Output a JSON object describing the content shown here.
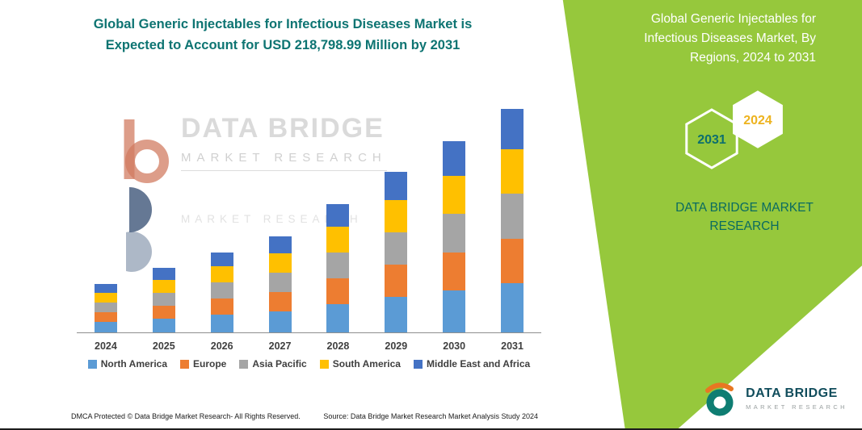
{
  "colors": {
    "green": "#96c83c",
    "teal": "#0d7472",
    "gold": "#edb31f",
    "axis": "#8f8f8f"
  },
  "left_panel": {
    "title": "Global Generic Injectables for Infectious Diseases Market is Expected to Account for USD 218,798.99 Million by 2031",
    "watermark": {
      "line1": "DATA BRIDGE",
      "line2": "MARKET  RESEARCH",
      "line3": "MARKET  RESEARCH"
    },
    "footer": {
      "left": "DMCA Protected © Data Bridge Market Research-  All Rights Reserved.",
      "right": "Source: Data Bridge Market Research  Market Analysis Study 2024"
    }
  },
  "right_panel": {
    "title": "Global Generic Injectables for Infectious Diseases Market, By Regions, 2024 to 2031",
    "hexagons": {
      "left_year": "2031",
      "right_year": "2024"
    },
    "brand_line1": "DATA BRIDGE MARKET",
    "brand_line2": "RESEARCH",
    "logo": {
      "name": "DATA BRIDGE",
      "tagline": "MARKET RESEARCH"
    }
  },
  "chart_data": {
    "type": "bar",
    "stacked": true,
    "title": "Global Generic Injectables for Infectious Diseases Market is Expected to Account for USD 218,798.99 Million by 2031",
    "unit": "USD Million",
    "categories": [
      "2024",
      "2025",
      "2026",
      "2027",
      "2028",
      "2029",
      "2030",
      "2031"
    ],
    "series": [
      {
        "name": "North America",
        "color": "#5B9BD5",
        "values": [
          10450,
          13860,
          17270,
          20790,
          27720,
          34650,
          41140,
          48136
        ]
      },
      {
        "name": "Europe",
        "color": "#ED7D31",
        "values": [
          9500,
          12600,
          15700,
          18900,
          25200,
          31500,
          37400,
          43760
        ]
      },
      {
        "name": "Asia Pacific",
        "color": "#A5A5A5",
        "values": [
          9500,
          12600,
          15700,
          18900,
          25200,
          31500,
          37400,
          43760
        ]
      },
      {
        "name": "South America",
        "color": "#FFC000",
        "values": [
          9500,
          12600,
          15700,
          18900,
          25200,
          31500,
          37400,
          43760
        ]
      },
      {
        "name": "Middle East and Africa",
        "color": "#4472C4",
        "values": [
          8550,
          11340,
          14130,
          17010,
          22680,
          28350,
          33660,
          39383
        ]
      }
    ],
    "ylim": [
      0,
      220000
    ],
    "grid": false,
    "legend_position": "bottom",
    "xlabel": "",
    "ylabel": ""
  }
}
